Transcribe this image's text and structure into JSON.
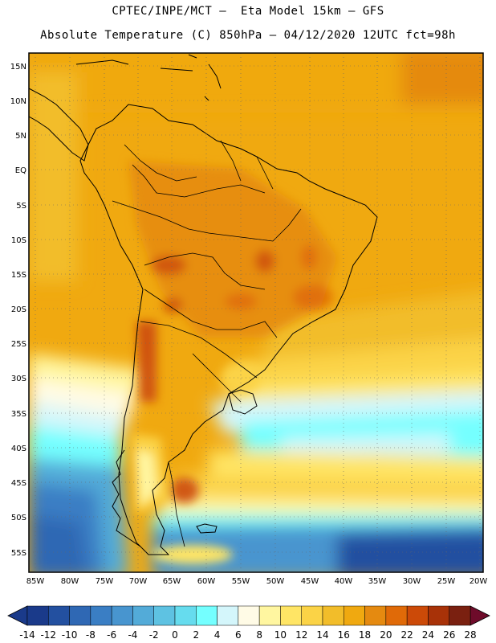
{
  "header": {
    "line1": "CPTEC/INPE/MCT –  Eta Model 15km – GFS",
    "line2": "Absolute Temperature (C) 850hPa – 04/12/2020 12UTC fct=98h"
  },
  "map": {
    "lat_labels": [
      "15N",
      "10N",
      "5N",
      "EQ",
      "5S",
      "10S",
      "15S",
      "20S",
      "25S",
      "30S",
      "35S",
      "40S",
      "45S",
      "50S",
      "55S"
    ],
    "lon_labels": [
      "85W",
      "80W",
      "75W",
      "70W",
      "65W",
      "60W",
      "55W",
      "50W",
      "45W",
      "40W",
      "35W",
      "30W",
      "25W",
      "20W"
    ]
  },
  "colorbar": {
    "labels": [
      "-14",
      "-12",
      "-10",
      "-8",
      "-6",
      "-4",
      "-2",
      "0",
      "2",
      "4",
      "6",
      "8",
      "10",
      "12",
      "14",
      "16",
      "18",
      "20",
      "22",
      "24",
      "26",
      "28"
    ],
    "colors": [
      "#1a3a8a",
      "#2350a0",
      "#2f68b4",
      "#3a7ec4",
      "#4895cf",
      "#53abd8",
      "#5ec2e2",
      "#66dcee",
      "#74ffff",
      "#d4f6fb",
      "#fffbe6",
      "#fff6a0",
      "#ffe565",
      "#fbd346",
      "#f2bd2a",
      "#f0a910",
      "#e58a10",
      "#e06a08",
      "#cc4a08",
      "#a83208",
      "#7a2010"
    ]
  }
}
